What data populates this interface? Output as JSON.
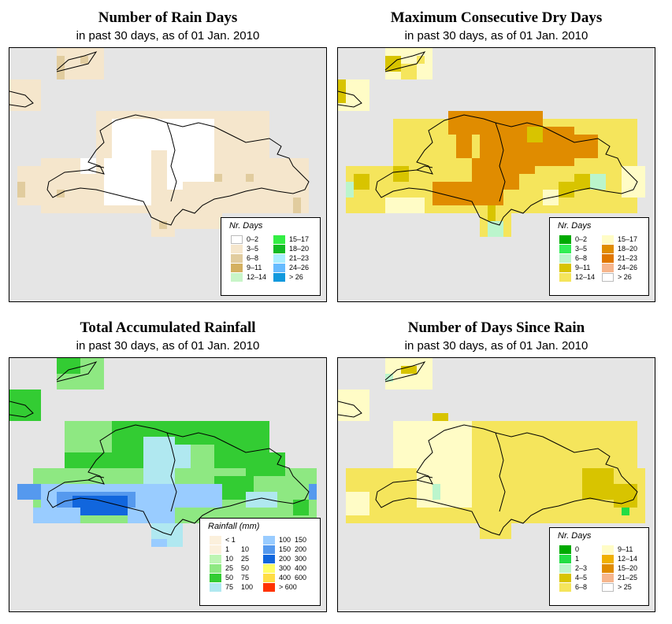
{
  "palette": {
    "land_outline": "#000000",
    "rain_days_classes": [
      "#ffffff",
      "#f5e6cc",
      "#e1cc9e",
      "#d4b060",
      "#c8d26a",
      "#c8f5c8",
      "#33ee44",
      "#11bb22",
      "#aaeeff",
      "#66bbff",
      "#1199dd"
    ],
    "dry_days_classes": [
      "#00aa00",
      "#33ee55",
      "#bbf5cc",
      "#d8c400",
      "#f5e55c",
      "#fffcc6",
      "#e08c00",
      "#e07700",
      "#f6b58c",
      "#ffffff"
    ],
    "rainfall_classes": [
      "#fbf0dc",
      "#bdf5b3",
      "#8ee882",
      "#59d65a",
      "#33cc33",
      "#b0e8f0",
      "#99ccff",
      "#5599ee",
      "#1166dd",
      "#ffff66",
      "#ffdd44",
      "#ff3300"
    ],
    "since_rain_classes": [
      "#00aa00",
      "#22dd44",
      "#bbf5cc",
      "#d8c400",
      "#f5e55c",
      "#fffcc6",
      "#f0b000",
      "#e08c00",
      "#f6b58c",
      "#ffffff"
    ]
  },
  "panels": [
    {
      "title": "Number of Rain Days",
      "subtitle": "in past 30 days, as of  01 Jan. 2010",
      "legend": {
        "title": "Nr. Days",
        "items": [
          {
            "label": "0–2",
            "color": "#ffffff"
          },
          {
            "label": "3–5",
            "color": "#f5e6cc"
          },
          {
            "label": "6–8",
            "color": "#e1cc9e"
          },
          {
            "label": "9–11",
            "color": "#d4b060"
          },
          {
            "label": "12–14",
            "color": "#c8f5c8"
          },
          {
            "label": "15–17",
            "color": "#33ee44"
          },
          {
            "label": "18–20",
            "color": "#11bb22"
          },
          {
            "label": "21–23",
            "color": "#aaeeff"
          },
          {
            "label": "24–26",
            "color": "#66bbff"
          },
          {
            "label": "> 26",
            "color": "#1199dd"
          }
        ]
      }
    },
    {
      "title": "Maximum Consecutive Dry Days",
      "subtitle": "in past 30 days, as of  01 Jan. 2010",
      "legend": {
        "title": "Nr. Days",
        "items": [
          {
            "label": "0–2",
            "color": "#00aa00"
          },
          {
            "label": "3–5",
            "color": "#33ee55"
          },
          {
            "label": "6–8",
            "color": "#bbf5cc"
          },
          {
            "label": "9–11",
            "color": "#d8c400"
          },
          {
            "label": "12–14",
            "color": "#f5e55c"
          },
          {
            "label": "15–17",
            "color": "#fffcc6"
          },
          {
            "label": "18–20",
            "color": "#e08c00"
          },
          {
            "label": "21–23",
            "color": "#e07700"
          },
          {
            "label": "24–26",
            "color": "#f6b58c"
          },
          {
            "label": "> 26",
            "color": "#ffffff"
          }
        ]
      }
    },
    {
      "title": "Total Accumulated Rainfall",
      "subtitle": "in past 30 days, as of  01 Jan. 2010",
      "legend": {
        "title": "Rainfall (mm)",
        "items": [
          {
            "a": "< 1",
            "b": "",
            "color": "#fbf0dc"
          },
          {
            "a": "1",
            "b": "10",
            "color": "#fbf0dc"
          },
          {
            "a": "10",
            "b": "25",
            "color": "#bdf5b3"
          },
          {
            "a": "25",
            "b": "50",
            "color": "#8ee882"
          },
          {
            "a": "50",
            "b": "75",
            "color": "#33cc33"
          },
          {
            "a": "75",
            "b": "100",
            "color": "#b0e8f0"
          },
          {
            "a": "100",
            "b": "150",
            "color": "#99ccff"
          },
          {
            "a": "150",
            "b": "200",
            "color": "#5599ee"
          },
          {
            "a": "200",
            "b": "300",
            "color": "#1166dd"
          },
          {
            "a": "300",
            "b": "400",
            "color": "#ffff66"
          },
          {
            "a": "400",
            "b": "600",
            "color": "#ffdd44"
          },
          {
            "a": "> 600",
            "b": "",
            "color": "#ff3300"
          }
        ]
      }
    },
    {
      "title": "Number of Days Since Rain",
      "subtitle": "in past 30 days, as of  01 Jan. 2010",
      "legend": {
        "title": "Nr. Days",
        "items": [
          {
            "label": "0",
            "color": "#00aa00"
          },
          {
            "label": "1",
            "color": "#22dd44"
          },
          {
            "label": "2–3",
            "color": "#bbf5cc"
          },
          {
            "label": "4–5",
            "color": "#d8c400"
          },
          {
            "label": "6–8",
            "color": "#f5e55c"
          },
          {
            "label": "9–11",
            "color": "#fffcc6"
          },
          {
            "label": "12–14",
            "color": "#f0b000"
          },
          {
            "label": "15–20",
            "color": "#e08c00"
          },
          {
            "label": "21–25",
            "color": "#f6b58c"
          },
          {
            "label": "> 25",
            "color": "#ffffff"
          }
        ]
      }
    }
  ]
}
